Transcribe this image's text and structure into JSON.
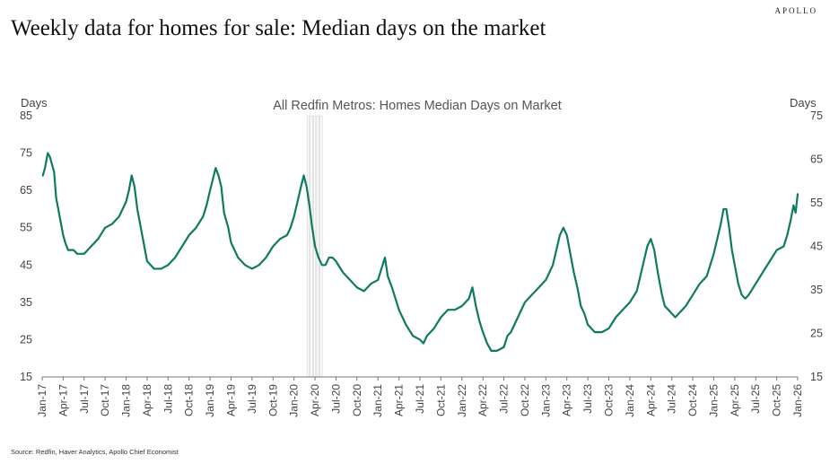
{
  "brand": "APOLLO",
  "title": "Weekly data for homes for sale: Median days on the market",
  "source": "Source: Redfin, Haver Analytics, Apollo Chief Economist",
  "colors": {
    "line": "#0e7a60",
    "recession": "#d9d9d9",
    "axis": "#777777"
  },
  "chart_data": {
    "type": "line",
    "title": "All Redfin Metros: Homes Median Days on Market",
    "ylabel_left": "Days",
    "ylabel_right": "Days",
    "ylim_left": [
      15,
      85
    ],
    "ylim_right": [
      15,
      75
    ],
    "yticks_left": [
      "85",
      "75",
      "65",
      "55",
      "45",
      "35",
      "25",
      "15"
    ],
    "yticks_right": [
      "75",
      "65",
      "55",
      "45",
      "35",
      "25",
      "15"
    ],
    "xlim": [
      0,
      108
    ],
    "xticks": [
      "Jan-17",
      "Apr-17",
      "Jul-17",
      "Oct-17",
      "Jan-18",
      "Apr-18",
      "Jul-18",
      "Oct-18",
      "Jan-19",
      "Apr-19",
      "Jul-19",
      "Oct-19",
      "Jan-20",
      "Apr-20",
      "Jul-20",
      "Oct-20",
      "Jan-21",
      "Apr-21",
      "Jul-21",
      "Oct-21",
      "Jan-22",
      "Apr-22",
      "Jul-22",
      "Oct-22",
      "Jan-23",
      "Apr-23",
      "Jul-23",
      "Oct-23",
      "Jan-24",
      "Apr-24",
      "Jul-24",
      "Oct-24",
      "Jan-25",
      "Apr-25",
      "Jul-25",
      "Oct-25",
      "Jan-26"
    ],
    "recession": {
      "start": 37.8,
      "end": 40.1,
      "label": ""
    },
    "series": [
      {
        "name": "All Redfin Metros: Homes Median Days on Market",
        "axis": "left",
        "points": [
          [
            0.1,
            69
          ],
          [
            0.4,
            71
          ],
          [
            0.8,
            75
          ],
          [
            1.1,
            74
          ],
          [
            1.4,
            72
          ],
          [
            1.7,
            70
          ],
          [
            2.0,
            63
          ],
          [
            2.5,
            58
          ],
          [
            3.0,
            53
          ],
          [
            3.3,
            51
          ],
          [
            3.7,
            49
          ],
          [
            4.5,
            49
          ],
          [
            5.0,
            48
          ],
          [
            6.0,
            48
          ],
          [
            7.0,
            50
          ],
          [
            8.0,
            52
          ],
          [
            9.0,
            55
          ],
          [
            10.0,
            56
          ],
          [
            11.0,
            58
          ],
          [
            11.5,
            60
          ],
          [
            12.0,
            62
          ],
          [
            12.4,
            65
          ],
          [
            12.8,
            69
          ],
          [
            13.2,
            66
          ],
          [
            13.6,
            60
          ],
          [
            14.0,
            56
          ],
          [
            14.6,
            50
          ],
          [
            15.0,
            46
          ],
          [
            15.5,
            45
          ],
          [
            16.0,
            44
          ],
          [
            16.5,
            44
          ],
          [
            17.0,
            44
          ],
          [
            18.0,
            45
          ],
          [
            19.0,
            47
          ],
          [
            20.0,
            50
          ],
          [
            21.0,
            53
          ],
          [
            22.0,
            55
          ],
          [
            23.0,
            58
          ],
          [
            23.5,
            61
          ],
          [
            24.0,
            65
          ],
          [
            24.4,
            68
          ],
          [
            24.8,
            71
          ],
          [
            25.2,
            69
          ],
          [
            25.6,
            66
          ],
          [
            26.0,
            59
          ],
          [
            26.6,
            55
          ],
          [
            27.0,
            51
          ],
          [
            28.0,
            47
          ],
          [
            29.0,
            45
          ],
          [
            30.0,
            44
          ],
          [
            31.0,
            45
          ],
          [
            32.0,
            47
          ],
          [
            33.0,
            50
          ],
          [
            34.0,
            52
          ],
          [
            35.0,
            53
          ],
          [
            35.5,
            55
          ],
          [
            36.0,
            58
          ],
          [
            36.5,
            62
          ],
          [
            37.0,
            66
          ],
          [
            37.4,
            69
          ],
          [
            37.8,
            66
          ],
          [
            38.2,
            61
          ],
          [
            38.6,
            55
          ],
          [
            39.0,
            50
          ],
          [
            39.5,
            47
          ],
          [
            40.0,
            45
          ],
          [
            40.5,
            45
          ],
          [
            41.0,
            47
          ],
          [
            41.5,
            47
          ],
          [
            42.0,
            46
          ],
          [
            43.0,
            43
          ],
          [
            44.0,
            41
          ],
          [
            45.0,
            39
          ],
          [
            46.0,
            38
          ],
          [
            47.0,
            40
          ],
          [
            48.0,
            41
          ],
          [
            48.5,
            44
          ],
          [
            49.0,
            47
          ],
          [
            49.4,
            42
          ],
          [
            50.0,
            39
          ],
          [
            51.0,
            33
          ],
          [
            52.0,
            29
          ],
          [
            53.0,
            26
          ],
          [
            54.0,
            25
          ],
          [
            54.5,
            24
          ],
          [
            55.0,
            26
          ],
          [
            56.0,
            28
          ],
          [
            57.0,
            31
          ],
          [
            58.0,
            33
          ],
          [
            59.0,
            33
          ],
          [
            60.0,
            34
          ],
          [
            61.0,
            36
          ],
          [
            61.5,
            39
          ],
          [
            62.0,
            34
          ],
          [
            62.5,
            30
          ],
          [
            63.0,
            27
          ],
          [
            63.6,
            24
          ],
          [
            64.2,
            22
          ],
          [
            65.0,
            22
          ],
          [
            66.0,
            23
          ],
          [
            66.5,
            26
          ],
          [
            67.0,
            27
          ],
          [
            68.0,
            31
          ],
          [
            69.0,
            35
          ],
          [
            70.0,
            37
          ],
          [
            71.0,
            39
          ],
          [
            72.0,
            41
          ],
          [
            73.0,
            45
          ],
          [
            73.5,
            49
          ],
          [
            74.0,
            53
          ],
          [
            74.5,
            55
          ],
          [
            75.0,
            53
          ],
          [
            75.5,
            48
          ],
          [
            76.0,
            43
          ],
          [
            76.5,
            39
          ],
          [
            77.0,
            34
          ],
          [
            77.5,
            32
          ],
          [
            78.0,
            29
          ],
          [
            79.0,
            27
          ],
          [
            80.0,
            27
          ],
          [
            81.0,
            28
          ],
          [
            82.0,
            31
          ],
          [
            83.0,
            33
          ],
          [
            84.0,
            35
          ],
          [
            85.0,
            38
          ],
          [
            85.5,
            42
          ],
          [
            86.0,
            46
          ],
          [
            86.5,
            50
          ],
          [
            87.0,
            52
          ],
          [
            87.5,
            49
          ],
          [
            88.0,
            43
          ],
          [
            88.6,
            37
          ],
          [
            89.0,
            34
          ],
          [
            89.5,
            33
          ],
          [
            90.0,
            32
          ],
          [
            90.5,
            31
          ],
          [
            91.0,
            32
          ],
          [
            92.0,
            34
          ],
          [
            93.0,
            37
          ],
          [
            94.0,
            40
          ],
          [
            95.0,
            42
          ],
          [
            95.5,
            45
          ],
          [
            96.0,
            48
          ],
          [
            96.5,
            52
          ],
          [
            97.0,
            56
          ],
          [
            97.4,
            60
          ],
          [
            97.8,
            60
          ],
          [
            98.2,
            55
          ],
          [
            98.6,
            49
          ],
          [
            99.0,
            45
          ],
          [
            99.5,
            40
          ],
          [
            100.0,
            37
          ],
          [
            100.5,
            36
          ],
          [
            101.0,
            37
          ],
          [
            102.0,
            40
          ],
          [
            103.0,
            43
          ],
          [
            104.0,
            46
          ],
          [
            105.0,
            49
          ],
          [
            106.0,
            50
          ],
          [
            106.5,
            53
          ],
          [
            107.0,
            57
          ],
          [
            107.4,
            61
          ],
          [
            107.7,
            59
          ],
          [
            108.0,
            64
          ]
        ]
      }
    ]
  }
}
